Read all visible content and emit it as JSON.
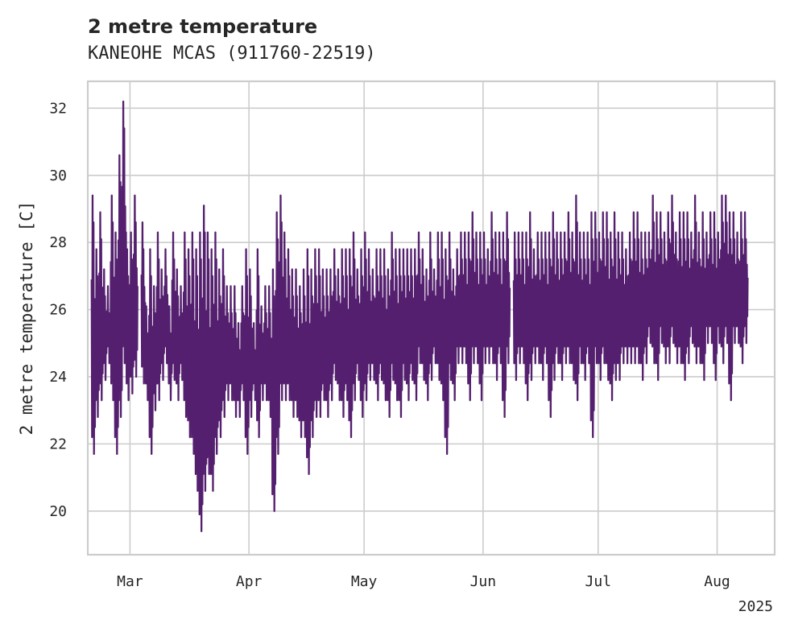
{
  "chart_data": {
    "type": "line",
    "title": "2 metre temperature",
    "subtitle": "KANEOHE MCAS (911760-22519)",
    "xlabel": "",
    "ylabel": "2 metre temperature [C]",
    "x_range": [
      "2025-02-18",
      "2025-08-16"
    ],
    "ylim": [
      18.7,
      32.8
    ],
    "y_ticks": [
      20,
      22,
      24,
      26,
      28,
      30,
      32
    ],
    "x_ticks": [
      {
        "date": "2025-03-01",
        "label": "Mar"
      },
      {
        "date": "2025-04-01",
        "label": "Apr"
      },
      {
        "date": "2025-05-01",
        "label": "May"
      },
      {
        "date": "2025-06-01",
        "label": "Jun"
      },
      {
        "date": "2025-07-01",
        "label": "Jul"
      },
      {
        "date": "2025-08-01",
        "label": "Aug"
      }
    ],
    "x_offset_label": "2025",
    "grid": true,
    "color": "#541f6e",
    "series": [
      {
        "x": [
          "2025-02-19",
          "2025-02-20",
          "2025-02-21",
          "2025-02-22",
          "2025-02-23",
          "2025-02-24",
          "2025-02-25",
          "2025-02-26",
          "2025-02-27",
          "2025-02-28",
          "2025-03-01",
          "2025-03-02",
          "2025-03-04",
          "2025-03-05",
          "2025-03-06",
          "2025-03-07",
          "2025-03-08",
          "2025-03-09",
          "2025-03-10",
          "2025-03-11",
          "2025-03-12",
          "2025-03-13",
          "2025-03-14",
          "2025-03-15",
          "2025-03-16",
          "2025-03-17",
          "2025-03-18",
          "2025-03-19",
          "2025-03-20",
          "2025-03-21",
          "2025-03-22",
          "2025-03-23",
          "2025-03-24",
          "2025-03-25",
          "2025-03-26",
          "2025-03-27",
          "2025-03-28",
          "2025-03-29",
          "2025-03-30",
          "2025-03-31",
          "2025-04-01",
          "2025-04-02",
          "2025-04-03",
          "2025-04-04",
          "2025-04-05",
          "2025-04-06",
          "2025-04-07",
          "2025-04-08",
          "2025-04-09",
          "2025-04-10",
          "2025-04-11",
          "2025-04-12",
          "2025-04-13",
          "2025-04-14",
          "2025-04-15",
          "2025-04-16",
          "2025-04-17",
          "2025-04-18",
          "2025-04-19",
          "2025-04-20",
          "2025-04-21",
          "2025-04-22",
          "2025-04-23",
          "2025-04-24",
          "2025-04-25",
          "2025-04-26",
          "2025-04-27",
          "2025-04-28",
          "2025-04-29",
          "2025-04-30",
          "2025-05-01",
          "2025-05-02",
          "2025-05-03",
          "2025-05-04",
          "2025-05-05",
          "2025-05-06",
          "2025-05-07",
          "2025-05-08",
          "2025-05-09",
          "2025-05-10",
          "2025-05-11",
          "2025-05-12",
          "2025-05-13",
          "2025-05-14",
          "2025-05-15",
          "2025-05-16",
          "2025-05-17",
          "2025-05-18",
          "2025-05-19",
          "2025-05-20",
          "2025-05-21",
          "2025-05-22",
          "2025-05-23",
          "2025-05-24",
          "2025-05-25",
          "2025-05-26",
          "2025-05-27",
          "2025-05-28",
          "2025-05-29",
          "2025-05-30",
          "2025-05-31",
          "2025-06-01",
          "2025-06-02",
          "2025-06-03",
          "2025-06-04",
          "2025-06-05",
          "2025-06-06",
          "2025-06-07",
          "2025-06-09",
          "2025-06-10",
          "2025-06-11",
          "2025-06-12",
          "2025-06-13",
          "2025-06-14",
          "2025-06-15",
          "2025-06-16",
          "2025-06-17",
          "2025-06-18",
          "2025-06-19",
          "2025-06-20",
          "2025-06-21",
          "2025-06-22",
          "2025-06-23",
          "2025-06-24",
          "2025-06-25",
          "2025-06-26",
          "2025-06-27",
          "2025-06-28",
          "2025-06-29",
          "2025-06-30",
          "2025-07-01",
          "2025-07-02",
          "2025-07-03",
          "2025-07-04",
          "2025-07-05",
          "2025-07-06",
          "2025-07-07",
          "2025-07-08",
          "2025-07-09",
          "2025-07-10",
          "2025-07-11",
          "2025-07-12",
          "2025-07-13",
          "2025-07-14",
          "2025-07-15",
          "2025-07-16",
          "2025-07-17",
          "2025-07-18",
          "2025-07-19",
          "2025-07-20",
          "2025-07-21",
          "2025-07-22",
          "2025-07-23",
          "2025-07-24",
          "2025-07-25",
          "2025-07-26",
          "2025-07-27",
          "2025-07-28",
          "2025-07-29",
          "2025-07-30",
          "2025-07-31",
          "2025-08-01",
          "2025-08-02",
          "2025-08-03",
          "2025-08-04",
          "2025-08-05",
          "2025-08-06",
          "2025-08-07",
          "2025-08-08",
          "2025-08-09",
          "2025-08-10",
          "2025-08-11",
          "2025-08-12",
          "2025-08-13",
          "2025-08-14"
        ],
        "min": [
          21.7,
          22.8,
          23.3,
          23.9,
          24.4,
          23.3,
          21.7,
          22.8,
          24.4,
          23.3,
          23.5,
          24.0,
          23.8,
          23.3,
          21.7,
          23.0,
          23.3,
          23.9,
          24.4,
          23.3,
          23.9,
          23.3,
          23.9,
          22.8,
          22.2,
          21.7,
          20.6,
          19.4,
          20.6,
          21.1,
          20.6,
          21.7,
          22.2,
          22.8,
          23.3,
          23.3,
          22.8,
          22.8,
          23.3,
          21.7,
          22.8,
          23.3,
          22.2,
          23.3,
          23.3,
          22.8,
          20.0,
          21.7,
          23.3,
          23.3,
          23.3,
          22.8,
          22.8,
          22.2,
          22.2,
          21.1,
          22.2,
          22.8,
          22.8,
          23.3,
          22.8,
          23.3,
          23.9,
          23.3,
          22.8,
          23.3,
          22.2,
          23.3,
          23.9,
          22.8,
          23.3,
          23.9,
          23.9,
          23.3,
          23.9,
          23.3,
          22.8,
          23.9,
          23.3,
          22.8,
          23.9,
          23.3,
          23.9,
          23.3,
          24.4,
          23.9,
          23.3,
          23.9,
          24.4,
          23.9,
          23.3,
          21.7,
          23.9,
          23.3,
          24.4,
          24.4,
          24.4,
          23.3,
          24.4,
          24.4,
          23.3,
          24.4,
          24.4,
          24.4,
          23.9,
          24.4,
          22.8,
          24.4,
          23.9,
          24.4,
          24.4,
          23.3,
          23.9,
          24.4,
          24.4,
          23.9,
          24.4,
          22.8,
          23.9,
          24.4,
          23.9,
          24.4,
          24.4,
          23.9,
          23.3,
          24.4,
          23.9,
          24.4,
          22.2,
          24.4,
          23.9,
          24.4,
          23.9,
          23.3,
          23.9,
          23.9,
          24.4,
          24.4,
          24.4,
          24.4,
          24.4,
          23.9,
          24.4,
          25.0,
          24.4,
          23.9,
          25.0,
          24.4,
          24.4,
          25.0,
          24.4,
          24.4,
          23.9,
          24.4,
          25.0,
          24.4,
          24.4,
          23.9,
          25.0,
          25.0,
          23.9,
          25.0,
          24.4,
          25.0,
          23.3,
          25.0,
          25.0,
          24.4,
          25.0
        ],
        "max": [
          29.4,
          27.8,
          28.9,
          27.2,
          26.7,
          29.4,
          28.3,
          30.6,
          32.2,
          27.8,
          28.3,
          29.4,
          28.6,
          26.1,
          27.8,
          26.7,
          28.3,
          27.2,
          27.8,
          26.1,
          28.3,
          27.2,
          26.7,
          28.3,
          27.8,
          28.3,
          27.8,
          28.3,
          29.1,
          28.3,
          27.8,
          28.3,
          27.2,
          27.8,
          26.7,
          26.7,
          26.7,
          25.6,
          26.7,
          27.8,
          27.2,
          25.6,
          27.8,
          26.1,
          26.7,
          26.7,
          27.2,
          28.9,
          29.4,
          28.3,
          27.8,
          27.2,
          27.2,
          26.7,
          27.2,
          27.8,
          27.2,
          27.8,
          27.8,
          27.2,
          27.2,
          27.2,
          27.8,
          27.2,
          27.8,
          27.8,
          27.8,
          28.3,
          27.2,
          27.8,
          28.3,
          27.8,
          27.2,
          27.8,
          27.8,
          27.8,
          27.2,
          28.3,
          27.8,
          27.8,
          27.8,
          27.8,
          27.8,
          27.8,
          28.3,
          27.8,
          27.2,
          28.3,
          27.2,
          28.3,
          28.3,
          27.8,
          28.3,
          27.2,
          27.8,
          28.3,
          28.3,
          28.3,
          28.9,
          28.3,
          28.3,
          28.3,
          27.8,
          28.9,
          28.3,
          28.3,
          28.3,
          28.9,
          28.3,
          28.3,
          28.3,
          28.3,
          28.9,
          27.8,
          28.3,
          28.3,
          28.3,
          28.3,
          28.9,
          28.3,
          28.3,
          28.3,
          28.9,
          28.3,
          29.4,
          28.3,
          28.3,
          28.3,
          28.9,
          28.9,
          28.3,
          28.9,
          28.9,
          28.3,
          28.9,
          28.3,
          28.3,
          27.8,
          28.3,
          28.9,
          28.9,
          28.3,
          28.3,
          28.3,
          29.4,
          28.9,
          28.9,
          28.3,
          28.9,
          29.4,
          28.3,
          28.9,
          28.9,
          28.9,
          28.3,
          29.4,
          28.3,
          28.9,
          28.3,
          28.9,
          28.9,
          28.3,
          29.4,
          29.4,
          28.9,
          28.9,
          28.3,
          28.9,
          28.9
        ]
      }
    ]
  }
}
